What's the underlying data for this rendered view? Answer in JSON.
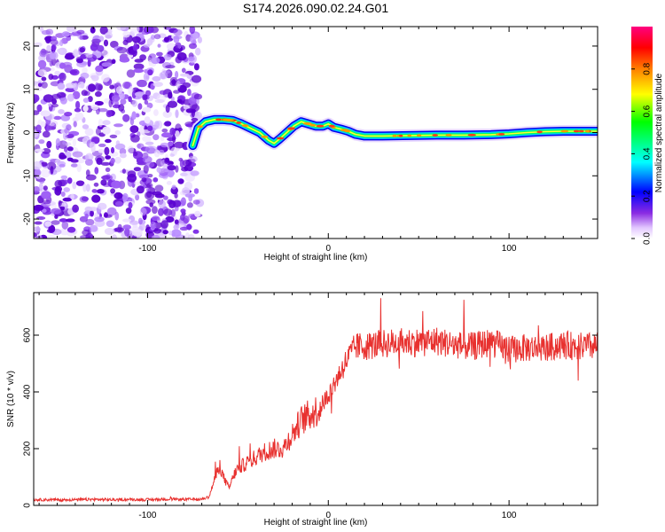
{
  "title": "S174.2026.090.02.24.G01",
  "colors": {
    "snr_line": "#e8312f",
    "axes": "#000000",
    "background": "#ffffff",
    "noise": "#8a3cff"
  },
  "chart_data": [
    {
      "type": "heatmap",
      "name": "spectrogram",
      "xlabel": "Height of straight line (km)",
      "ylabel": "Frequency (Hz)",
      "xlim": [
        -163,
        149
      ],
      "ylim": [
        -24.5,
        24.5
      ],
      "xticks": [
        -100,
        0,
        100
      ],
      "xtick_labels": [
        "-100",
        "0",
        "100"
      ],
      "yticks": [
        20,
        10,
        0,
        -10,
        -20
      ],
      "ytick_labels": [
        "20",
        "10",
        "0",
        "-10",
        "-20"
      ],
      "noise_region_x": [
        -163,
        -75
      ],
      "signal_track": {
        "x": [
          -75,
          -72,
          -68,
          -63,
          -58,
          -53,
          -48,
          -43,
          -38,
          -33,
          -30,
          -27,
          -23,
          -19,
          -15,
          -11,
          -7,
          -3,
          0,
          3,
          7,
          11,
          15,
          20,
          30,
          45,
          60,
          75,
          90,
          100,
          110,
          120,
          130,
          140,
          149
        ],
        "y": [
          -3.0,
          1.0,
          2.5,
          3.0,
          3.0,
          2.8,
          2.0,
          1.0,
          0.0,
          -1.8,
          -2.5,
          -1.5,
          0.0,
          1.5,
          2.5,
          2.0,
          1.5,
          1.5,
          2.0,
          1.2,
          0.8,
          0.3,
          -0.4,
          -0.8,
          -0.8,
          -0.7,
          -0.6,
          -0.6,
          -0.5,
          -0.3,
          0.0,
          0.2,
          0.3,
          0.3,
          0.3
        ]
      },
      "colorbar": {
        "label": "Normalized spectral amplitude",
        "range": [
          0,
          1
        ],
        "ticks": [
          0.0,
          0.2,
          0.4,
          0.6,
          0.8
        ],
        "tick_labels": [
          "0.0",
          "0.2",
          "0.4",
          "0.6",
          "0.8"
        ]
      }
    },
    {
      "type": "line",
      "name": "snr",
      "xlabel": "Height of straight line (km)",
      "ylabel": "SNR (10 * v/v)",
      "xlim": [
        -163,
        149
      ],
      "ylim": [
        0,
        750
      ],
      "xticks": [
        -100,
        0,
        100
      ],
      "xtick_labels": [
        "-100",
        "0",
        "100"
      ],
      "yticks": [
        0,
        200,
        400,
        600
      ],
      "ytick_labels": [
        "0",
        "200",
        "400",
        "600"
      ],
      "series": [
        {
          "name": "SNR",
          "x": [
            -163,
            -150,
            -140,
            -130,
            -120,
            -110,
            -100,
            -90,
            -80,
            -70,
            -66,
            -63,
            -60,
            -58,
            -55,
            -52,
            -50,
            -45,
            -40,
            -35,
            -30,
            -25,
            -20,
            -15,
            -10,
            -5,
            0,
            5,
            10,
            15,
            20,
            30,
            40,
            50,
            60,
            70,
            80,
            90,
            100,
            110,
            120,
            130,
            140,
            149
          ],
          "values": [
            20,
            20,
            20,
            21,
            20,
            21,
            20,
            22,
            21,
            22,
            30,
            90,
            140,
            100,
            60,
            110,
            130,
            150,
            170,
            190,
            200,
            200,
            250,
            300,
            320,
            340,
            390,
            450,
            510,
            560,
            560,
            570,
            575,
            575,
            580,
            565,
            560,
            575,
            550,
            555,
            555,
            565,
            560,
            560
          ]
        }
      ]
    }
  ]
}
